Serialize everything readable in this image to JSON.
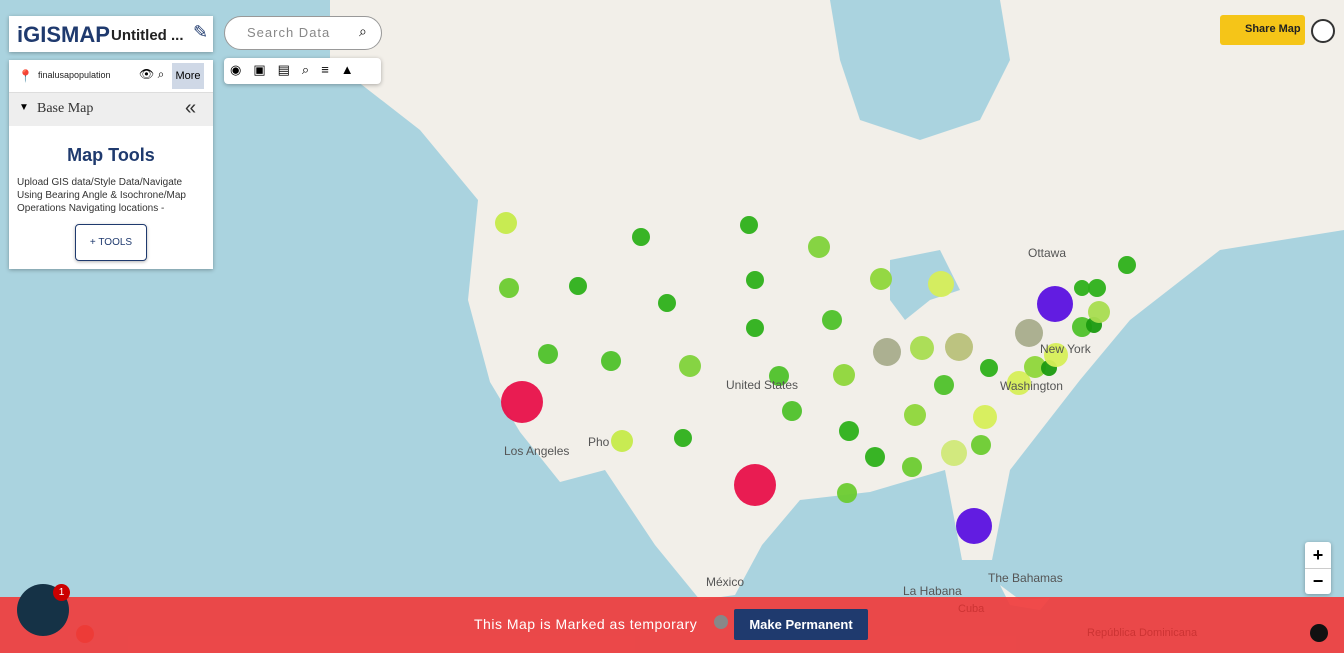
{
  "header": {
    "logo": "iGISMAP",
    "title": "Untitled ...",
    "search_placeholder": "Search Data",
    "share": "Share Map"
  },
  "layer": {
    "name": "finalusapopulation",
    "more": "More"
  },
  "base_map": "Base Map",
  "tools": {
    "title": "Map Tools",
    "description": "Upload GIS data/Style Data/Navigate Using Bearing Angle & Isochrone/Map Operations Navigating locations -",
    "button": "+ TOOLS"
  },
  "map_labels": {
    "ottawa": "Ottawa",
    "new_york": "New York",
    "washington": "Washington",
    "united_states": "United States",
    "los_angeles": "Los Angeles",
    "phoenix": "Pho",
    "mexico": "México",
    "la_habana": "La Habana",
    "bahamas": "The Bahamas",
    "cuba": "Cuba",
    "dominicana": "República Dominicana"
  },
  "zoom": {
    "in": "+",
    "out": "−"
  },
  "banner": {
    "text": "This Map is Marked as temporary",
    "button": "Make Permanent"
  },
  "chat_badge": "1"
}
